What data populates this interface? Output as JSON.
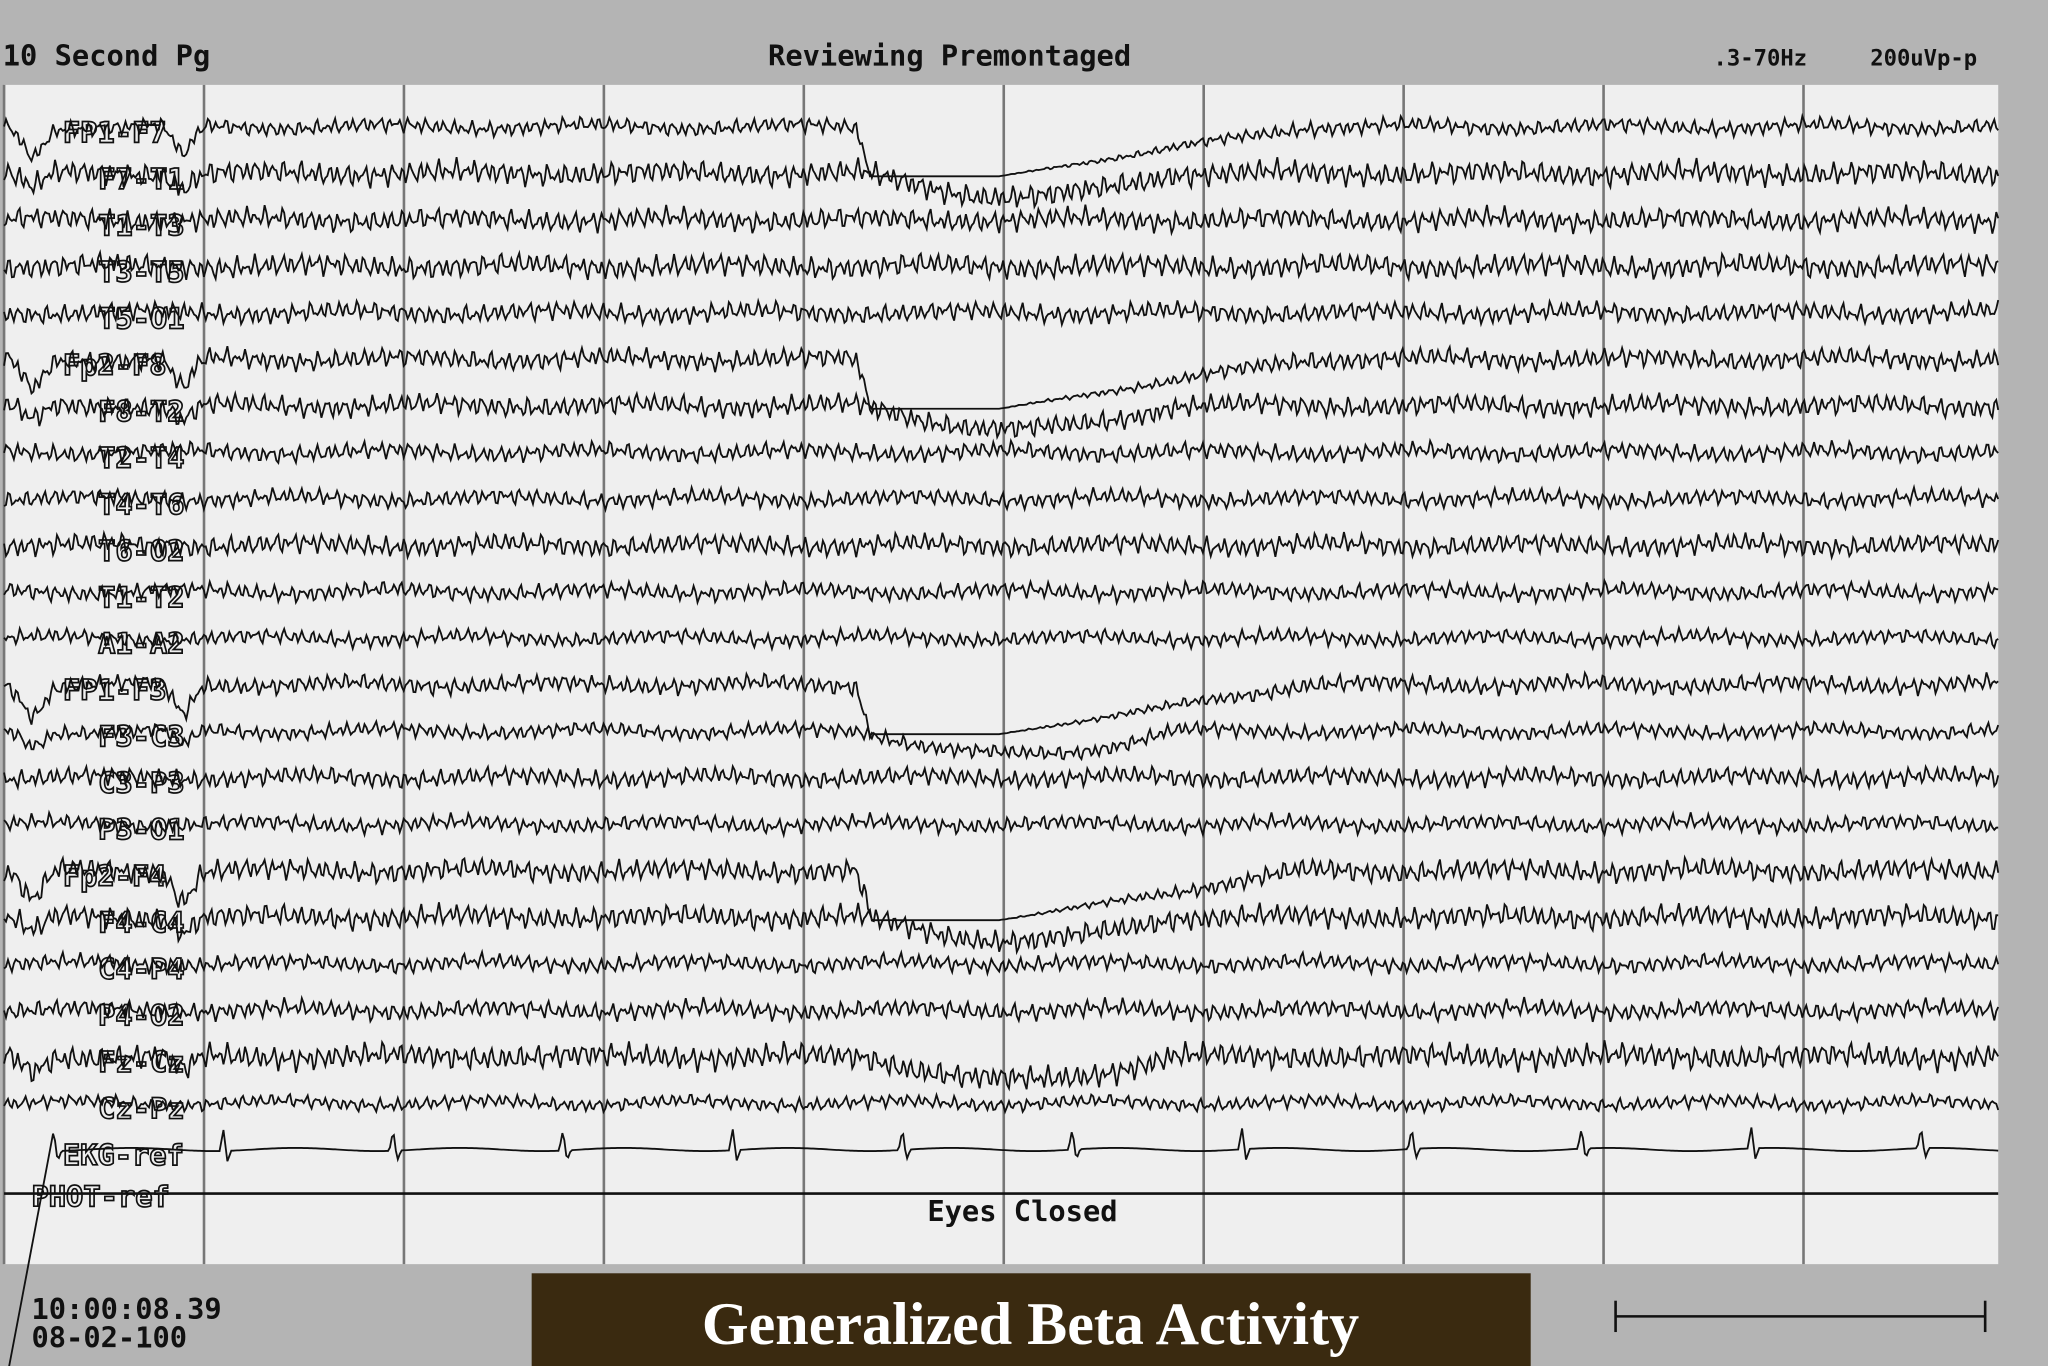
{
  "header": {
    "page": "10 Second Pg",
    "mode": "Reviewing Premontaged",
    "filter": ".3-70Hz",
    "sensitivity": "200uVp-p"
  },
  "channels": [
    "FP1-F7",
    "F7-T1",
    "T1-T3",
    "T3-T5",
    "T5-O1",
    "Fp2-F8",
    "F8-T2",
    "T2-T4",
    "T4-T6",
    "T6-O2",
    "T1-T2",
    "A1-A2",
    "FP1-F3",
    "F3-C3",
    "C3-P3",
    "P3-O1",
    "Fp2-F4",
    "F4-C4",
    "C4-P4",
    "P4-O2",
    "Fz-Cz",
    "Cz-Pz",
    "EKG-ref",
    "PHOT-ref"
  ],
  "annotation": "Eyes Closed",
  "footer": {
    "time": "10:00:08.39",
    "date": "08-02-100",
    "caption": "Generalized Beta Activity"
  }
}
